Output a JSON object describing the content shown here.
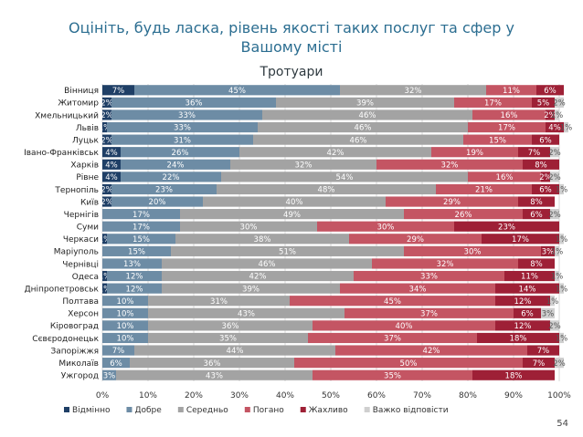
{
  "title_line1": "Оцініть, будь ласка, рівень якості таких послуг та сфер у",
  "title_line2": "Вашому місті",
  "page_number": "54",
  "chart_data": {
    "type": "bar",
    "orientation": "horizontal",
    "stacked": true,
    "title": "Тротуари",
    "xlim": [
      0,
      100
    ],
    "xticks": [
      "0%",
      "10%",
      "20%",
      "30%",
      "40%",
      "50%",
      "60%",
      "70%",
      "80%",
      "90%",
      "100%"
    ],
    "grid": true,
    "legend_position": "bottom",
    "categories": [
      "Вінниця",
      "Житомир",
      "Хмельницький",
      "Львів",
      "Луцьк",
      "Івано-Франківськ",
      "Харків",
      "Рівне",
      "Тернопіль",
      "Київ",
      "Чернігів",
      "Суми",
      "Черкаси",
      "Маріуполь",
      "Чернівці",
      "Одеса",
      "Дніпропетровськ",
      "Полтава",
      "Херсон",
      "Кіровоград",
      "Сєвєродонецьк",
      "Запоріжжя",
      "Миколаїв",
      "Ужгород"
    ],
    "series": [
      {
        "name": "Відмінно",
        "color": "#1f3f66",
        "text_color": "#ffffff",
        "values": [
          7,
          2,
          2,
          1,
          2,
          4,
          4,
          4,
          2,
          2,
          0,
          0,
          1,
          0,
          0,
          1,
          1,
          0,
          0,
          0,
          0,
          0,
          0,
          0
        ]
      },
      {
        "name": "Добре",
        "color": "#6d8ca5",
        "text_color": "#ffffff",
        "values": [
          45,
          36,
          33,
          33,
          31,
          26,
          24,
          22,
          23,
          20,
          17,
          17,
          15,
          15,
          13,
          12,
          12,
          10,
          10,
          10,
          10,
          7,
          6,
          3
        ]
      },
      {
        "name": "Середньо",
        "color": "#a3a3a3",
        "text_color": "#ffffff",
        "values": [
          32,
          39,
          46,
          46,
          46,
          42,
          32,
          54,
          48,
          40,
          49,
          30,
          38,
          51,
          46,
          42,
          39,
          31,
          43,
          36,
          35,
          44,
          36,
          43
        ]
      },
      {
        "name": "Погано",
        "color": "#c45563",
        "text_color": "#ffffff",
        "values": [
          11,
          17,
          16,
          17,
          15,
          19,
          32,
          16,
          21,
          29,
          26,
          30,
          29,
          30,
          32,
          33,
          34,
          45,
          37,
          40,
          37,
          42,
          50,
          35
        ]
      },
      {
        "name": "Жахливо",
        "color": "#9e2036",
        "text_color": "#ffffff",
        "values": [
          6,
          5,
          2,
          4,
          6,
          7,
          8,
          2,
          6,
          8,
          6,
          23,
          17,
          3,
          8,
          11,
          14,
          12,
          6,
          12,
          18,
          7,
          7,
          18
        ]
      },
      {
        "name": "Важко відповісти",
        "color": "#cfcfcf",
        "text_color": "#555555",
        "values": [
          0,
          2,
          1,
          1,
          0,
          2,
          0,
          2,
          1,
          0,
          2,
          0,
          1,
          1,
          0,
          1,
          1,
          1,
          3,
          2,
          1,
          0,
          2,
          0
        ]
      }
    ]
  }
}
